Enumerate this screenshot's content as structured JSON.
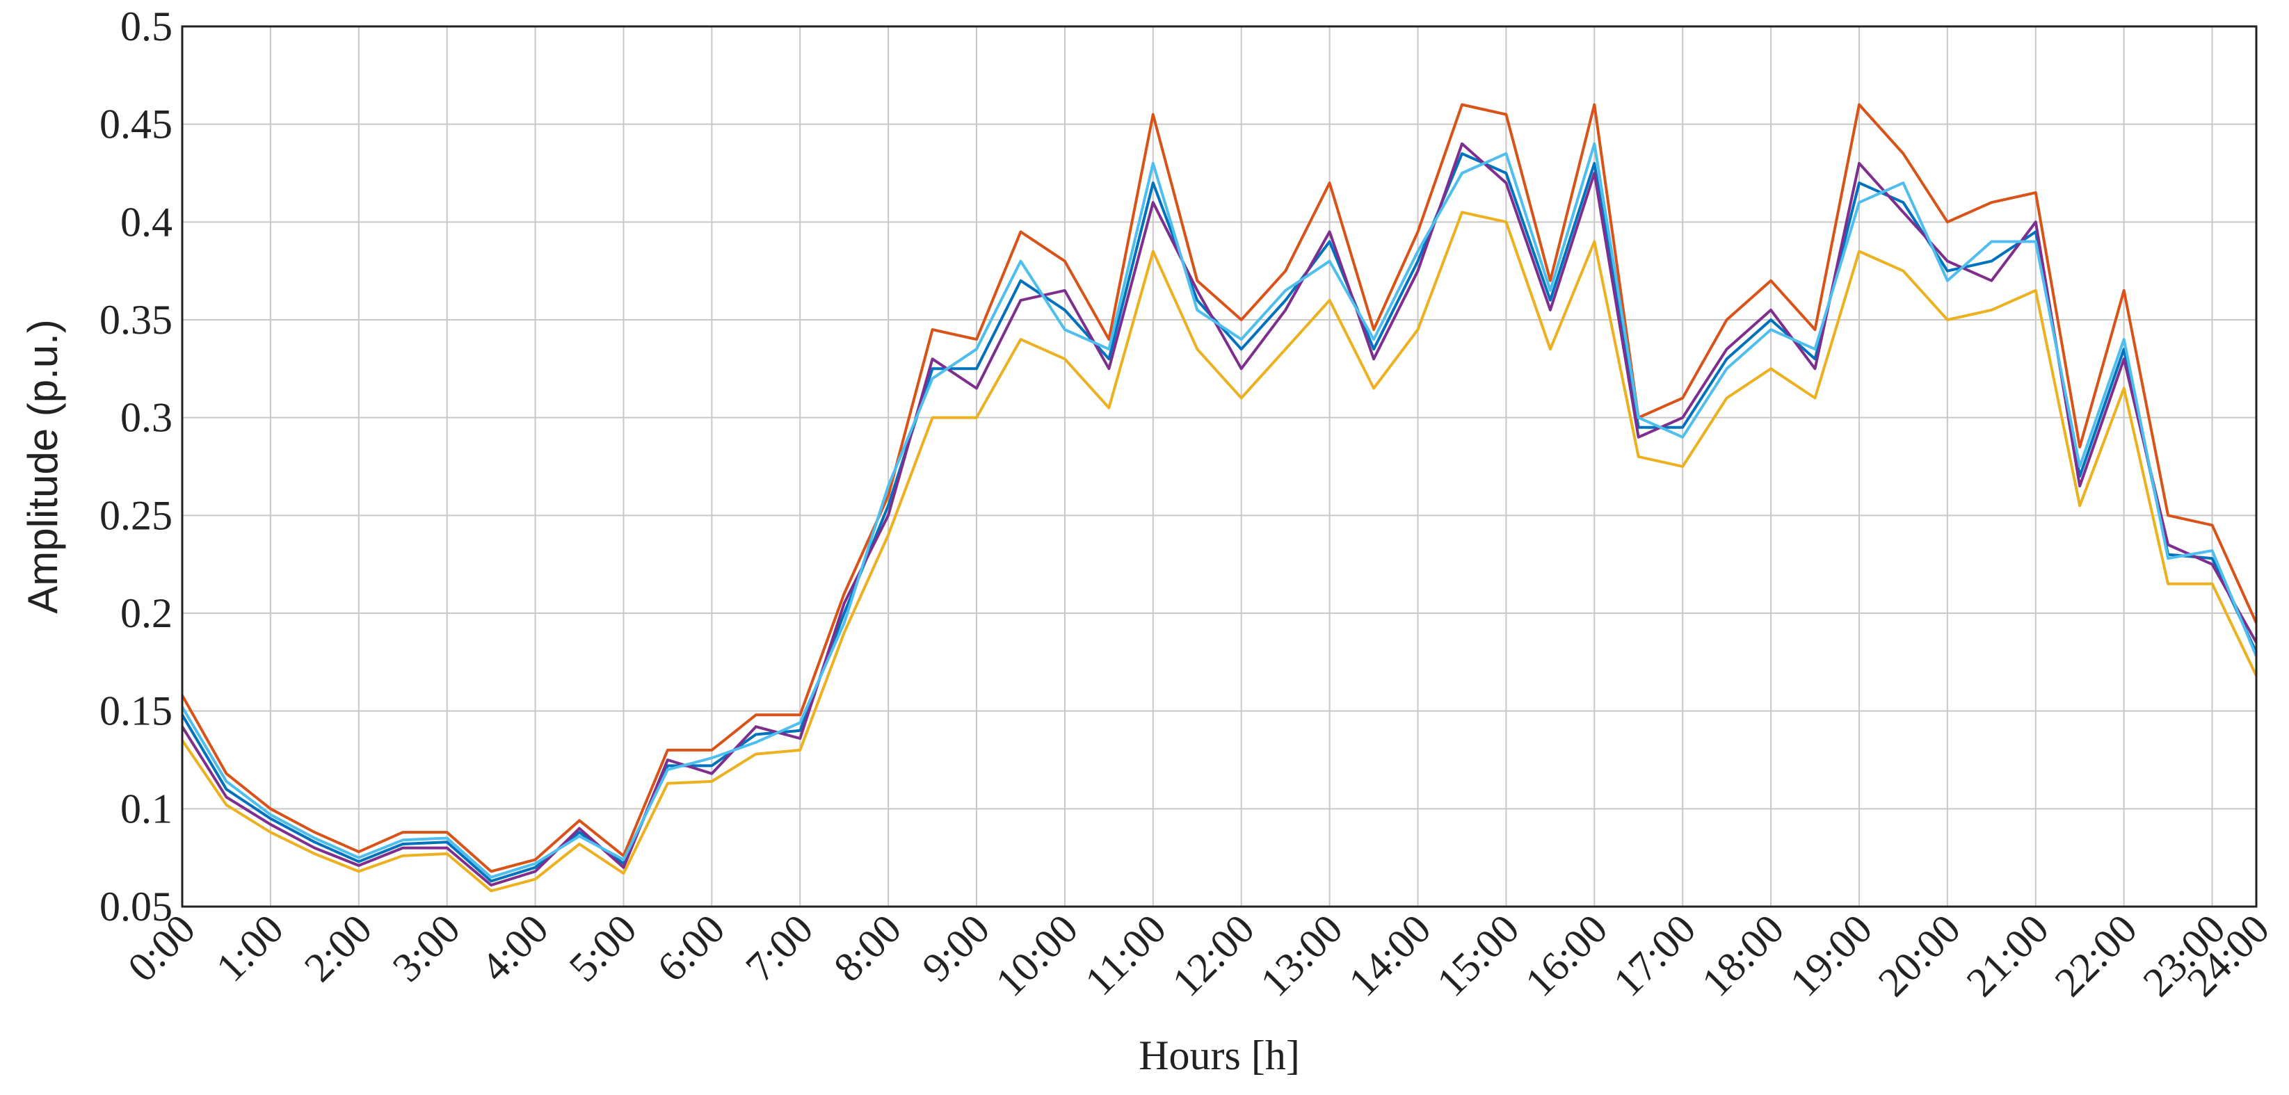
{
  "chart_data": {
    "type": "line",
    "xlabel": "Hours [h]",
    "ylabel": "Amplitude (p.u.)",
    "x": [
      0,
      0.5,
      1,
      1.5,
      2,
      2.5,
      3,
      3.5,
      4,
      4.5,
      5,
      5.5,
      6,
      6.5,
      7,
      7.5,
      8,
      8.5,
      9,
      9.5,
      10,
      10.5,
      11,
      11.5,
      12,
      12.5,
      13,
      13.5,
      14,
      14.5,
      15,
      15.5,
      16,
      16.5,
      17,
      17.5,
      18,
      18.5,
      19,
      19.5,
      20,
      20.5,
      21,
      21.5,
      22,
      22.5,
      23,
      23.5
    ],
    "xlim": [
      0,
      23.5
    ],
    "xticks": [
      {
        "value": 0,
        "label": "0:00"
      },
      {
        "value": 1,
        "label": "1:00"
      },
      {
        "value": 2,
        "label": "2:00"
      },
      {
        "value": 3,
        "label": "3:00"
      },
      {
        "value": 4,
        "label": "4:00"
      },
      {
        "value": 5,
        "label": "5:00"
      },
      {
        "value": 6,
        "label": "6:00"
      },
      {
        "value": 7,
        "label": "7:00"
      },
      {
        "value": 8,
        "label": "8:00"
      },
      {
        "value": 9,
        "label": "9:00"
      },
      {
        "value": 10,
        "label": "10:00"
      },
      {
        "value": 11,
        "label": "11:00"
      },
      {
        "value": 12,
        "label": "12:00"
      },
      {
        "value": 13,
        "label": "13:00"
      },
      {
        "value": 14,
        "label": "14:00"
      },
      {
        "value": 15,
        "label": "15:00"
      },
      {
        "value": 16,
        "label": "16:00"
      },
      {
        "value": 17,
        "label": "17:00"
      },
      {
        "value": 18,
        "label": "18:00"
      },
      {
        "value": 19,
        "label": "19:00"
      },
      {
        "value": 20,
        "label": "20:00"
      },
      {
        "value": 21,
        "label": "21:00"
      },
      {
        "value": 22,
        "label": "22:00"
      },
      {
        "value": 23,
        "label": "23:00"
      },
      {
        "value": 23.5,
        "label": "24:00"
      }
    ],
    "ylim": [
      0.05,
      0.5
    ],
    "yticks": [
      0.05,
      0.1,
      0.15,
      0.2,
      0.25,
      0.3,
      0.35,
      0.4,
      0.45,
      0.5
    ],
    "grid": true,
    "series": [
      {
        "color": "#0072BD",
        "values": [
          0.148,
          0.11,
          0.095,
          0.083,
          0.073,
          0.082,
          0.083,
          0.063,
          0.07,
          0.088,
          0.072,
          0.122,
          0.122,
          0.138,
          0.14,
          0.2,
          0.255,
          0.325,
          0.325,
          0.37,
          0.355,
          0.33,
          0.42,
          0.36,
          0.335,
          0.36,
          0.39,
          0.335,
          0.38,
          0.435,
          0.425,
          0.36,
          0.43,
          0.295,
          0.295,
          0.33,
          0.35,
          0.33,
          0.42,
          0.41,
          0.375,
          0.38,
          0.395,
          0.27,
          0.335,
          0.23,
          0.228,
          0.18
        ]
      },
      {
        "color": "#D95319",
        "values": [
          0.158,
          0.118,
          0.1,
          0.088,
          0.078,
          0.088,
          0.088,
          0.068,
          0.074,
          0.094,
          0.076,
          0.13,
          0.13,
          0.148,
          0.148,
          0.21,
          0.26,
          0.345,
          0.34,
          0.395,
          0.38,
          0.34,
          0.455,
          0.37,
          0.35,
          0.375,
          0.42,
          0.345,
          0.395,
          0.46,
          0.455,
          0.37,
          0.46,
          0.3,
          0.31,
          0.35,
          0.37,
          0.345,
          0.46,
          0.435,
          0.4,
          0.41,
          0.415,
          0.285,
          0.365,
          0.25,
          0.245,
          0.195
        ]
      },
      {
        "color": "#EDB120",
        "values": [
          0.135,
          0.102,
          0.088,
          0.077,
          0.068,
          0.076,
          0.077,
          0.058,
          0.064,
          0.082,
          0.067,
          0.113,
          0.114,
          0.128,
          0.13,
          0.19,
          0.24,
          0.3,
          0.3,
          0.34,
          0.33,
          0.305,
          0.385,
          0.335,
          0.31,
          0.335,
          0.36,
          0.315,
          0.345,
          0.405,
          0.4,
          0.335,
          0.39,
          0.28,
          0.275,
          0.31,
          0.325,
          0.31,
          0.385,
          0.375,
          0.35,
          0.355,
          0.365,
          0.255,
          0.315,
          0.215,
          0.215,
          0.168
        ]
      },
      {
        "color": "#7E2F8E",
        "values": [
          0.142,
          0.106,
          0.092,
          0.08,
          0.071,
          0.08,
          0.08,
          0.061,
          0.068,
          0.09,
          0.07,
          0.125,
          0.118,
          0.142,
          0.136,
          0.205,
          0.25,
          0.33,
          0.315,
          0.36,
          0.365,
          0.325,
          0.41,
          0.365,
          0.325,
          0.355,
          0.395,
          0.33,
          0.375,
          0.44,
          0.42,
          0.355,
          0.425,
          0.29,
          0.3,
          0.335,
          0.355,
          0.325,
          0.43,
          0.405,
          0.38,
          0.37,
          0.4,
          0.265,
          0.33,
          0.235,
          0.225,
          0.185
        ]
      },
      {
        "color": "#4DBEEE",
        "values": [
          0.152,
          0.114,
          0.097,
          0.085,
          0.075,
          0.084,
          0.085,
          0.065,
          0.072,
          0.086,
          0.074,
          0.12,
          0.126,
          0.134,
          0.144,
          0.195,
          0.265,
          0.32,
          0.335,
          0.38,
          0.345,
          0.335,
          0.43,
          0.355,
          0.34,
          0.365,
          0.38,
          0.34,
          0.385,
          0.425,
          0.435,
          0.365,
          0.44,
          0.3,
          0.29,
          0.325,
          0.345,
          0.335,
          0.41,
          0.42,
          0.37,
          0.39,
          0.39,
          0.275,
          0.34,
          0.228,
          0.232,
          0.178
        ]
      }
    ]
  }
}
